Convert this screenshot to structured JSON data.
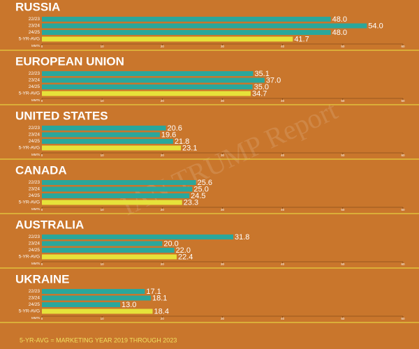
{
  "chart_data": [
    {
      "type": "bar",
      "orientation": "horizontal",
      "title": "RUSSIA",
      "categories": [
        "22/23",
        "23/24",
        "24/25",
        "5-YR-AVG"
      ],
      "values": [
        48.0,
        54.0,
        48.0,
        41.7
      ],
      "value_labels": [
        "48.0",
        "54.0",
        "48.0",
        "41.7"
      ],
      "colors": [
        "#2aa79b",
        "#2aa79b",
        "#2aa79b",
        "#e6e23a"
      ],
      "xlabel": "MMTs",
      "xlim": [
        0,
        60
      ],
      "xticks": [
        0,
        10,
        20,
        30,
        40,
        50,
        60
      ]
    },
    {
      "type": "bar",
      "orientation": "horizontal",
      "title": "EUROPEAN UNION",
      "categories": [
        "22/23",
        "23/24",
        "24/25",
        "5-YR-AVG"
      ],
      "values": [
        35.1,
        37.0,
        35.0,
        34.7
      ],
      "value_labels": [
        "35.1",
        "37.0",
        "35.0",
        "34.7"
      ],
      "colors": [
        "#2aa79b",
        "#2aa79b",
        "#2aa79b",
        "#e6e23a"
      ],
      "xlabel": "MMTs",
      "xlim": [
        0,
        60
      ],
      "xticks": [
        0,
        10,
        20,
        30,
        40,
        50,
        60
      ]
    },
    {
      "type": "bar",
      "orientation": "horizontal",
      "title": "UNITED STATES",
      "categories": [
        "22/23",
        "23/24",
        "24/25",
        "5-YR-AVG"
      ],
      "values": [
        20.6,
        19.6,
        21.8,
        23.1
      ],
      "value_labels": [
        "20.6",
        "19.6",
        "21.8",
        "23.1"
      ],
      "colors": [
        "#2aa79b",
        "#2aa79b",
        "#2aa79b",
        "#e6e23a"
      ],
      "xlabel": "MMTs",
      "xlim": [
        0,
        60
      ],
      "xticks": [
        0,
        10,
        20,
        30,
        40,
        50,
        60
      ]
    },
    {
      "type": "bar",
      "orientation": "horizontal",
      "title": "CANADA",
      "categories": [
        "22/23",
        "23/24",
        "24/25",
        "5-YR-AVG"
      ],
      "values": [
        25.6,
        25.0,
        24.5,
        23.3
      ],
      "value_labels": [
        "25.6",
        "25.0",
        "24.5",
        "23.3"
      ],
      "colors": [
        "#2aa79b",
        "#2aa79b",
        "#2aa79b",
        "#e6e23a"
      ],
      "xlabel": "MMTs",
      "xlim": [
        0,
        60
      ],
      "xticks": [
        0,
        10,
        20,
        30,
        40,
        50,
        60
      ]
    },
    {
      "type": "bar",
      "orientation": "horizontal",
      "title": "AUSTRALIA",
      "categories": [
        "22/23",
        "23/24",
        "24/25",
        "5-YR-AVG"
      ],
      "values": [
        31.8,
        20.0,
        22.0,
        22.4
      ],
      "value_labels": [
        "31.8",
        "20.0",
        "22.0",
        "22.4"
      ],
      "colors": [
        "#2aa79b",
        "#2aa79b",
        "#2aa79b",
        "#e6e23a"
      ],
      "xlabel": "MMTs",
      "xlim": [
        0,
        60
      ],
      "xticks": [
        0,
        10,
        20,
        30,
        40,
        50,
        60
      ]
    },
    {
      "type": "bar",
      "orientation": "horizontal",
      "title": "UKRAINE",
      "categories": [
        "22/23",
        "23/24",
        "24/25",
        "5-YR-AVG"
      ],
      "values": [
        17.1,
        18.1,
        13.0,
        18.4
      ],
      "value_labels": [
        "17.1",
        "18.1",
        "13.0",
        "18.4"
      ],
      "colors": [
        "#2aa79b",
        "#2aa79b",
        "#2aa79b",
        "#e6e23a"
      ],
      "xlabel": "MMTs",
      "xlim": [
        0,
        60
      ],
      "xticks": [
        0,
        10,
        20,
        30,
        40,
        50,
        60
      ]
    }
  ],
  "footnote": "5-YR-AVG = MARKETING YEAR 2019 THROUGH 2023",
  "watermark": "IAN TRUMP Report"
}
